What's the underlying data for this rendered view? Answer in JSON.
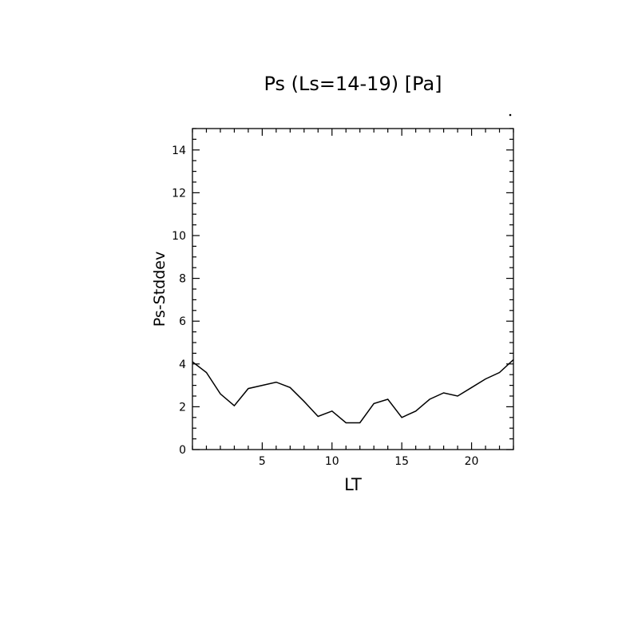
{
  "chart_data": {
    "type": "line",
    "title": "Ps (Ls=14-19) [Pa]",
    "xlabel": "LT",
    "ylabel": "Ps-Stddev",
    "xlim": [
      0,
      23
    ],
    "ylim": [
      0,
      15
    ],
    "xticks": [
      5,
      10,
      15,
      20
    ],
    "yticks": [
      0,
      2,
      4,
      6,
      8,
      10,
      12,
      14
    ],
    "grid": false,
    "series": [
      {
        "x": [
          0,
          1,
          2,
          3,
          4,
          5,
          6,
          7,
          8,
          9,
          10,
          11,
          12,
          13,
          14,
          15,
          16,
          17,
          18,
          19,
          20,
          21,
          22,
          23
        ],
        "values": [
          4.1,
          3.6,
          2.6,
          2.05,
          2.85,
          3.0,
          3.15,
          2.9,
          2.25,
          1.55,
          1.8,
          1.25,
          1.25,
          2.15,
          2.35,
          1.5,
          1.8,
          2.35,
          2.65,
          2.5,
          2.9,
          3.3,
          3.6,
          4.2
        ]
      }
    ]
  }
}
